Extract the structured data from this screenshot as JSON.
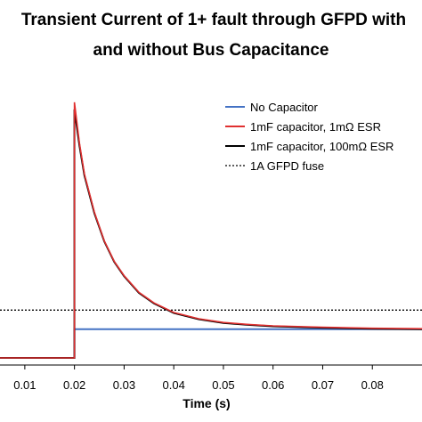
{
  "chart_data": {
    "type": "line",
    "title_line1": "Transient Current of 1+ fault through GFPD with",
    "title_line2": "and without Bus Capacitance",
    "xlabel": "Time (s)",
    "ylabel": "",
    "xlim": [
      0.005,
      0.09
    ],
    "ylim": [
      -0.15,
      6.0
    ],
    "x_ticks": [
      "0.01",
      "0.02",
      "0.03",
      "0.04",
      "0.05",
      "0.06",
      "0.07",
      "0.08"
    ],
    "x_tick_values": [
      0.01,
      0.02,
      0.03,
      0.04,
      0.05,
      0.06,
      0.07,
      0.08
    ],
    "grid": false,
    "legend_position": "top-right",
    "series": [
      {
        "name": "No Capacitor",
        "color": "#4472C4",
        "style": "solid",
        "x": [
          0.005,
          0.02,
          0.02,
          0.09
        ],
        "y": [
          0.0,
          0.0,
          0.6,
          0.6
        ]
      },
      {
        "name": "1mF capacitor, 1mΩ  ESR",
        "color": "#E03030",
        "style": "solid",
        "x": [
          0.005,
          0.02,
          0.02,
          0.021,
          0.022,
          0.024,
          0.026,
          0.028,
          0.03,
          0.033,
          0.036,
          0.04,
          0.045,
          0.05,
          0.055,
          0.06,
          0.07,
          0.08,
          0.09
        ],
        "y": [
          0.0,
          0.0,
          5.35,
          4.5,
          3.85,
          3.05,
          2.45,
          2.02,
          1.72,
          1.37,
          1.15,
          0.95,
          0.82,
          0.74,
          0.7,
          0.67,
          0.64,
          0.62,
          0.61
        ]
      },
      {
        "name": "1mF capacitor, 100mΩ  ESR",
        "color": "#000000",
        "style": "solid",
        "x": [
          0.005,
          0.02,
          0.02,
          0.021,
          0.022,
          0.024,
          0.026,
          0.028,
          0.03,
          0.033,
          0.036,
          0.04,
          0.045,
          0.05,
          0.055,
          0.06,
          0.07,
          0.08,
          0.09
        ],
        "y": [
          0.0,
          0.0,
          5.2,
          4.45,
          3.82,
          3.03,
          2.44,
          2.01,
          1.71,
          1.36,
          1.14,
          0.94,
          0.81,
          0.73,
          0.69,
          0.66,
          0.63,
          0.61,
          0.6
        ]
      },
      {
        "name": "1A GFPD fuse",
        "color": "#000000",
        "style": "dotted",
        "x": [
          0.005,
          0.09
        ],
        "y": [
          1.0,
          1.0
        ]
      }
    ]
  }
}
